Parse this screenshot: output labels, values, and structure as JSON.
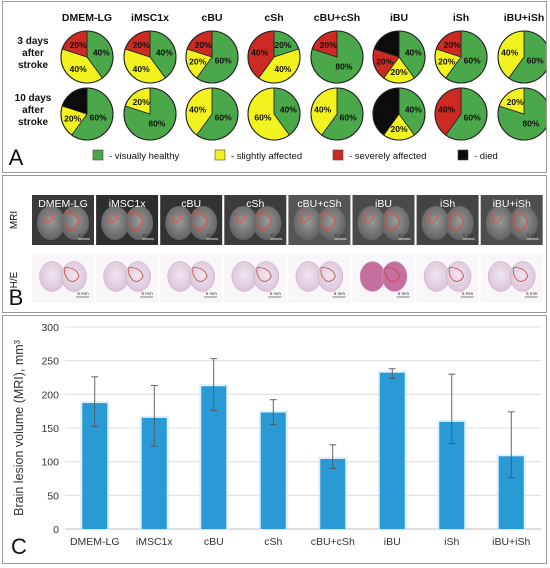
{
  "panel_a": {
    "letter": "A",
    "groups": [
      "DMEM-LG",
      "iMSC1x",
      "cBU",
      "cSh",
      "cBU+cSh",
      "iBU",
      "iSh",
      "iBU+iSh"
    ],
    "rows": [
      {
        "label_lines": [
          "3 days",
          "after",
          "stroke"
        ],
        "pies": [
          {
            "slices": [
              {
                "cat": "healthy",
                "pct": 40,
                "label": "40%"
              },
              {
                "cat": "slight",
                "pct": 40,
                "label": "40%"
              },
              {
                "cat": "severe",
                "pct": 20,
                "label": "20%"
              }
            ]
          },
          {
            "slices": [
              {
                "cat": "healthy",
                "pct": 40,
                "label": "40%"
              },
              {
                "cat": "slight",
                "pct": 40,
                "label": "40%"
              },
              {
                "cat": "severe",
                "pct": 20,
                "label": "20%"
              }
            ]
          },
          {
            "slices": [
              {
                "cat": "healthy",
                "pct": 60,
                "label": "60%"
              },
              {
                "cat": "slight",
                "pct": 20,
                "label": "20%"
              },
              {
                "cat": "severe",
                "pct": 20,
                "label": "20%"
              }
            ]
          },
          {
            "slices": [
              {
                "cat": "healthy",
                "pct": 20,
                "label": "20%"
              },
              {
                "cat": "slight",
                "pct": 40,
                "label": "40%"
              },
              {
                "cat": "severe",
                "pct": 40,
                "label": "40%"
              }
            ]
          },
          {
            "slices": [
              {
                "cat": "healthy",
                "pct": 80,
                "label": "80%"
              },
              {
                "cat": "severe",
                "pct": 20,
                "label": "20%"
              }
            ]
          },
          {
            "slices": [
              {
                "cat": "healthy",
                "pct": 40,
                "label": "40%"
              },
              {
                "cat": "slight",
                "pct": 20,
                "label": "20%"
              },
              {
                "cat": "severe",
                "pct": 20,
                "label": "20%"
              },
              {
                "cat": "died",
                "pct": 20,
                "label": "20%"
              }
            ]
          },
          {
            "slices": [
              {
                "cat": "healthy",
                "pct": 60,
                "label": "60%"
              },
              {
                "cat": "slight",
                "pct": 20,
                "label": "20%"
              },
              {
                "cat": "severe",
                "pct": 20,
                "label": "20%"
              }
            ]
          },
          {
            "slices": [
              {
                "cat": "healthy",
                "pct": 60,
                "label": "60%"
              },
              {
                "cat": "slight",
                "pct": 40,
                "label": "40%"
              }
            ]
          }
        ]
      },
      {
        "label_lines": [
          "10 days",
          "after",
          "stroke"
        ],
        "pies": [
          {
            "slices": [
              {
                "cat": "healthy",
                "pct": 60,
                "label": "60%"
              },
              {
                "cat": "slight",
                "pct": 20,
                "label": "20%"
              },
              {
                "cat": "died",
                "pct": 20,
                "label": "20%"
              }
            ]
          },
          {
            "slices": [
              {
                "cat": "healthy",
                "pct": 80,
                "label": "80%"
              },
              {
                "cat": "slight",
                "pct": 20,
                "label": "20%"
              }
            ]
          },
          {
            "slices": [
              {
                "cat": "healthy",
                "pct": 60,
                "label": "60%"
              },
              {
                "cat": "slight",
                "pct": 40,
                "label": "40%"
              }
            ]
          },
          {
            "slices": [
              {
                "cat": "healthy",
                "pct": 40,
                "label": "40%"
              },
              {
                "cat": "slight",
                "pct": 60,
                "label": "60%"
              }
            ]
          },
          {
            "slices": [
              {
                "cat": "healthy",
                "pct": 60,
                "label": "60%"
              },
              {
                "cat": "slight",
                "pct": 40,
                "label": "40%"
              }
            ]
          },
          {
            "slices": [
              {
                "cat": "healthy",
                "pct": 40,
                "label": "40%"
              },
              {
                "cat": "slight",
                "pct": 20,
                "label": "20%"
              },
              {
                "cat": "died",
                "pct": 40,
                "label": "40%"
              }
            ]
          },
          {
            "slices": [
              {
                "cat": "healthy",
                "pct": 60,
                "label": "60%"
              },
              {
                "cat": "severe",
                "pct": 40,
                "label": "40%"
              }
            ]
          },
          {
            "slices": [
              {
                "cat": "healthy",
                "pct": 80,
                "label": "80%"
              },
              {
                "cat": "slight",
                "pct": 20,
                "label": "20%"
              }
            ]
          }
        ]
      }
    ],
    "legend": [
      {
        "cat": "healthy",
        "label": "- visually healthy"
      },
      {
        "cat": "slight",
        "label": "- slightly affected"
      },
      {
        "cat": "severe",
        "label": "- severely affected"
      },
      {
        "cat": "died",
        "label": "- died"
      }
    ],
    "colors": {
      "healthy": "#4aa84a",
      "slight": "#f2f21f",
      "severe": "#cc2a22",
      "died": "#0c0c0c"
    }
  },
  "panel_b": {
    "letter": "B",
    "row_labels": [
      "MRI",
      "H/E"
    ],
    "groups": [
      "DMEM-LG",
      "iMSC1x",
      "cBU",
      "cSh",
      "cBU+cSh",
      "iBU",
      "iSh",
      "iBU+iSh"
    ],
    "scale_bar": "5 mm"
  },
  "chart_data": {
    "type": "bar",
    "panel_letter": "C",
    "categories": [
      "DMEM-LG",
      "iMSC1x",
      "cBU",
      "cSh",
      "cBU+cSh",
      "iBU",
      "iSh",
      "iBU+iSh"
    ],
    "values": [
      187,
      165,
      212,
      173,
      104,
      232,
      159,
      108
    ],
    "error_low": [
      152,
      123,
      176,
      155,
      90,
      224,
      127,
      76
    ],
    "error_high": [
      226,
      213,
      253,
      192,
      125,
      238,
      230,
      174
    ],
    "ylabel": "Brain lesion volume (MRI), mm³",
    "xlabel": "",
    "ylim": [
      0,
      300
    ],
    "yticks": [
      0,
      50,
      100,
      150,
      200,
      250,
      300
    ],
    "grid": true,
    "bar_color": "#2a9ad6"
  }
}
